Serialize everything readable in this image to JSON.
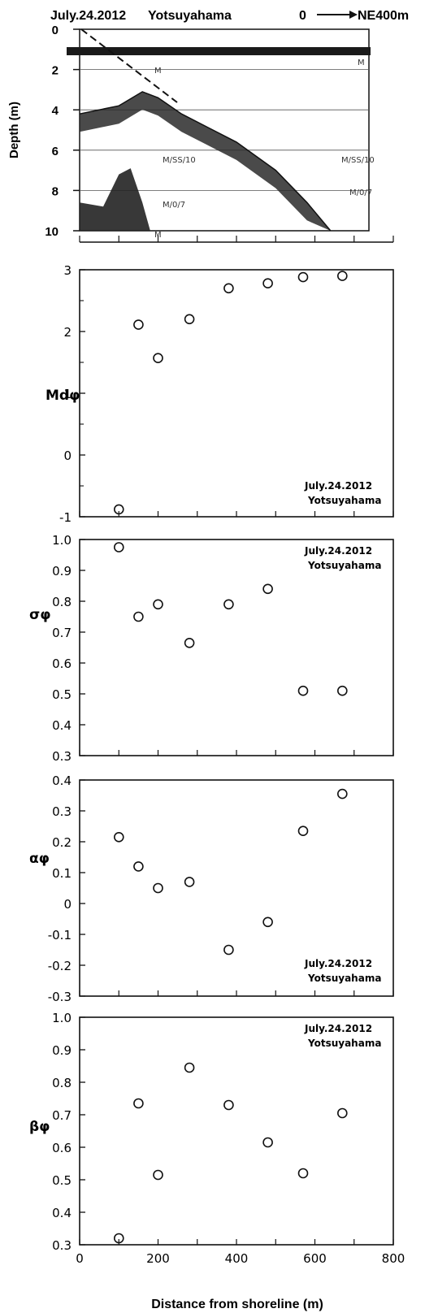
{
  "header": {
    "date": "July.24.2012",
    "place": "Yotsuyahama",
    "scale_start": "0",
    "scale_end": "NE400m"
  },
  "colors": {
    "ink": "#111111",
    "echo": "#1a1a1a",
    "paper": "#ffffff"
  },
  "chart_data": [
    {
      "type": "line",
      "panel": "echogram",
      "ylabel": "Depth (m)",
      "ylim": [
        10,
        0
      ],
      "yticks": [
        "0",
        "2",
        "4",
        "6",
        "8",
        "10"
      ],
      "series": [
        {
          "x": [
            0,
            100,
            160,
            200,
            260,
            400,
            500,
            580,
            640
          ],
          "values": [
            4.2,
            3.8,
            3.1,
            3.4,
            4.2,
            5.6,
            7.0,
            8.6,
            10.0
          ]
        }
      ],
      "annotations": [
        "M",
        "M/SS/10",
        "M/0/7",
        "M",
        "M/SS/10",
        "M/0/7",
        "M"
      ]
    },
    {
      "type": "scatter",
      "panel": "md",
      "ylabel": "Mdφ",
      "ylim": [
        -1,
        3
      ],
      "yticks": [
        "3",
        "2",
        "1",
        "0",
        "-1"
      ],
      "x": [
        100,
        150,
        200,
        280,
        380,
        480,
        570,
        670
      ],
      "values": [
        -0.88,
        2.11,
        1.57,
        2.2,
        2.7,
        2.78,
        2.88,
        2.9
      ],
      "annotation": [
        "July.24.2012",
        "Yotsuyahama"
      ]
    },
    {
      "type": "scatter",
      "panel": "sigma",
      "ylabel": "σφ",
      "ylim": [
        0.3,
        1.0
      ],
      "yticks": [
        "1.0",
        "0.9",
        "0.8",
        "0.7",
        "0.6",
        "0.5",
        "0.4",
        "0.3"
      ],
      "x": [
        100,
        150,
        200,
        280,
        380,
        480,
        570,
        670
      ],
      "values": [
        0.975,
        0.75,
        0.79,
        0.665,
        0.79,
        0.84,
        0.51,
        0.51
      ],
      "annotation": [
        "July.24.2012",
        "Yotsuyahama"
      ]
    },
    {
      "type": "scatter",
      "panel": "alpha",
      "ylabel": "αφ",
      "ylim": [
        -0.3,
        0.4
      ],
      "yticks": [
        "0.4",
        "0.3",
        "0.2",
        "0.1",
        "0",
        "-0.1",
        "-0.2",
        "-0.3"
      ],
      "x": [
        100,
        150,
        200,
        280,
        380,
        480,
        570,
        670
      ],
      "values": [
        0.215,
        0.12,
        0.05,
        0.07,
        -0.15,
        -0.06,
        0.235,
        0.355
      ],
      "annotation": [
        "July.24.2012",
        "Yotsuyahama"
      ]
    },
    {
      "type": "scatter",
      "panel": "beta",
      "ylabel": "βφ",
      "xlabel": "Distance from shoreline (m)",
      "ylim": [
        0.3,
        1.0
      ],
      "xlim": [
        0,
        800
      ],
      "yticks": [
        "1.0",
        "0.9",
        "0.8",
        "0.7",
        "0.6",
        "0.5",
        "0.4",
        "0.3"
      ],
      "xticks": [
        "0",
        "200",
        "400",
        "600",
        "800"
      ],
      "x": [
        100,
        150,
        200,
        280,
        380,
        480,
        570,
        670
      ],
      "values": [
        0.32,
        0.735,
        0.515,
        0.845,
        0.73,
        0.615,
        0.52,
        0.705
      ],
      "annotation": [
        "July.24.2012",
        "Yotsuyahama"
      ]
    }
  ]
}
